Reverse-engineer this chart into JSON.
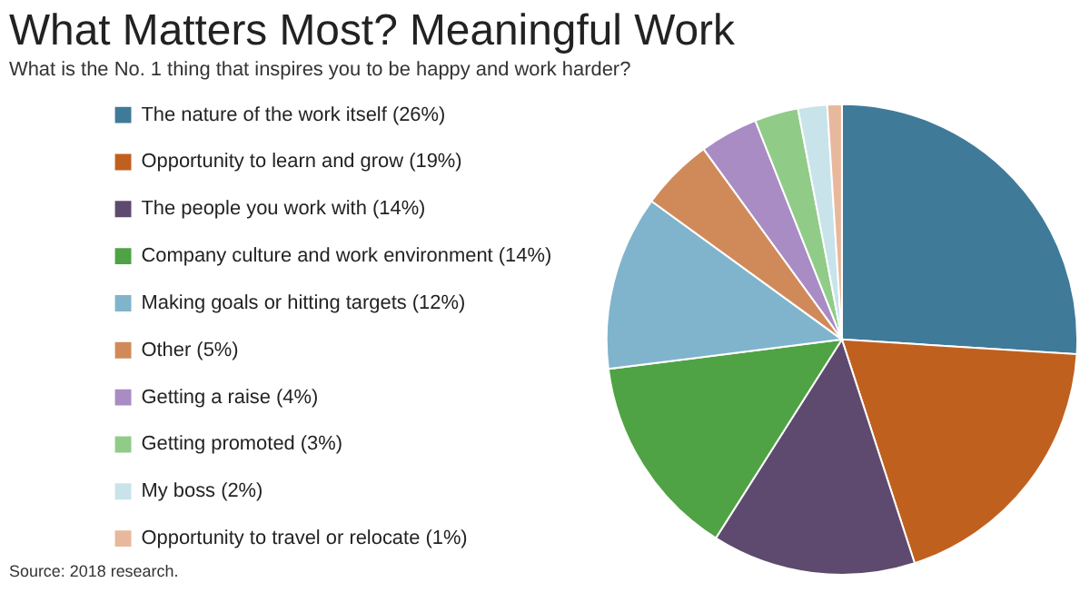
{
  "chart_data": {
    "type": "pie",
    "title": "What Matters Most? Meaningful Work",
    "subtitle": "What is the No. 1 thing that inspires you to be happy and work harder?",
    "categories": [
      "The nature of the work itself (26%)",
      "Opportunity to learn and grow (19%)",
      "The people you work with (14%)",
      "Company culture and work environment (14%)",
      "Making goals or hitting targets (12%)",
      "Other (5%)",
      "Getting a raise (4%)",
      "Getting promoted (3%)",
      "My boss (2%)",
      "Opportunity to travel or relocate (1%)"
    ],
    "values": [
      26,
      19,
      14,
      14,
      12,
      5,
      4,
      3,
      2,
      1
    ],
    "colors": [
      "#3f7a99",
      "#c0601f",
      "#5e4a6e",
      "#4fa344",
      "#80b4cc",
      "#d08a5a",
      "#a98cc4",
      "#90cc88",
      "#c8e3ea",
      "#e8b89c"
    ],
    "legend": "left",
    "annotations": [
      "Source: 2018 research."
    ]
  }
}
